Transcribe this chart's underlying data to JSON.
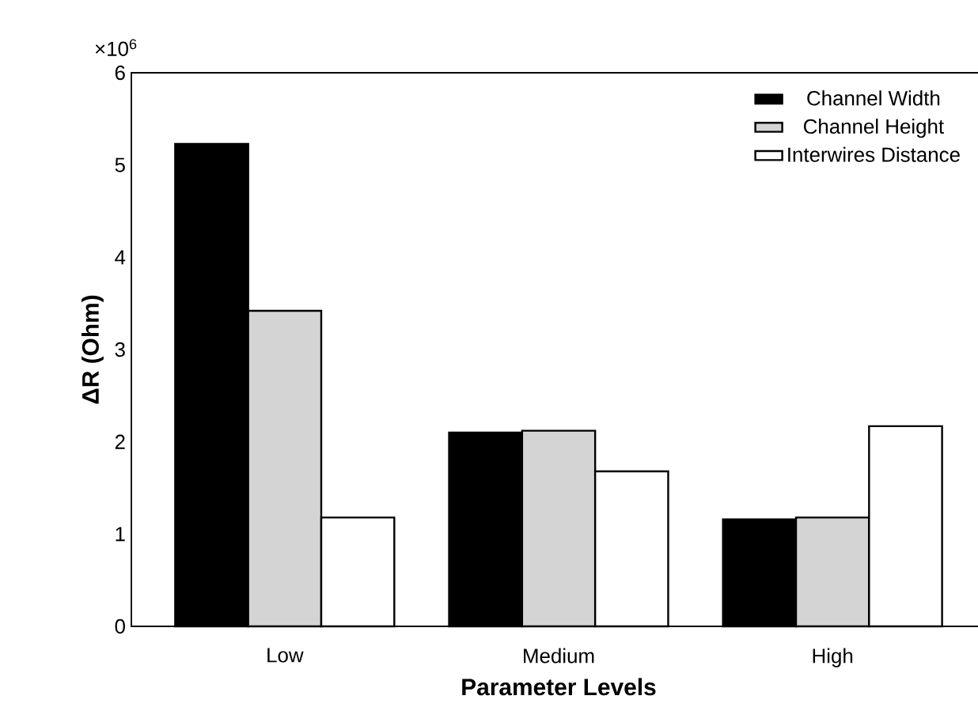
{
  "chart_data": {
    "type": "bar",
    "xlabel": "Parameter Levels",
    "ylabel": "ΔR (Ohm)",
    "annotations": [
      "×10$^{6}$"
    ],
    "categories": [
      "Low",
      "Medium",
      "High"
    ],
    "series": [
      {
        "name": "Channel Width",
        "color": "#000000",
        "values": [
          5.23,
          2.1,
          1.16
        ]
      },
      {
        "name": "Channel Height",
        "color": "#d4d4d4",
        "values": [
          3.42,
          2.12,
          1.18
        ]
      },
      {
        "name": "Interwires Distance",
        "color": "#ffffff",
        "values": [
          1.18,
          1.68,
          2.17
        ]
      }
    ],
    "ylim": [
      0,
      6
    ],
    "yticks": [
      0,
      1,
      2,
      3,
      4,
      5,
      6
    ],
    "legend": "top right",
    "grid": false
  }
}
